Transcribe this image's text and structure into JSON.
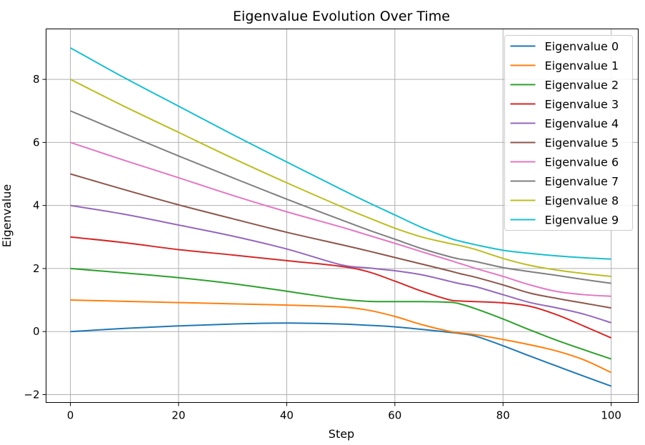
{
  "chart_data": {
    "type": "line",
    "title": "Eigenvalue Evolution Over Time",
    "xlabel": "Step",
    "ylabel": "Eigenvalue",
    "xlim": [
      -4.5,
      105
    ],
    "ylim": [
      -2.25,
      9.6
    ],
    "xticks": [
      0,
      20,
      40,
      60,
      80,
      100
    ],
    "yticks": [
      -2,
      0,
      2,
      4,
      6,
      8
    ],
    "grid": true,
    "legend_position": "top-right",
    "x": [
      0,
      10,
      20,
      30,
      40,
      50,
      55,
      60,
      65,
      70,
      72,
      75,
      80,
      85,
      90,
      95,
      100
    ],
    "series": [
      {
        "name": "Eigenvalue 0",
        "color": "#1f77b4",
        "values": [
          0.0,
          0.1,
          0.18,
          0.24,
          0.27,
          0.24,
          0.2,
          0.15,
          0.07,
          -0.02,
          -0.06,
          -0.15,
          -0.45,
          -0.78,
          -1.1,
          -1.42,
          -1.73
        ]
      },
      {
        "name": "Eigenvalue 1",
        "color": "#ff7f0e",
        "values": [
          1.0,
          0.96,
          0.92,
          0.88,
          0.84,
          0.78,
          0.68,
          0.48,
          0.22,
          0.01,
          -0.04,
          -0.1,
          -0.25,
          -0.42,
          -0.62,
          -0.9,
          -1.3
        ]
      },
      {
        "name": "Eigenvalue 2",
        "color": "#2ca02c",
        "values": [
          2.0,
          1.86,
          1.71,
          1.52,
          1.28,
          1.03,
          0.96,
          0.95,
          0.95,
          0.93,
          0.88,
          0.72,
          0.4,
          0.05,
          -0.28,
          -0.58,
          -0.87
        ]
      },
      {
        "name": "Eigenvalue 3",
        "color": "#d62728",
        "values": [
          3.0,
          2.82,
          2.6,
          2.43,
          2.25,
          2.07,
          1.9,
          1.6,
          1.28,
          1.01,
          0.97,
          0.95,
          0.91,
          0.8,
          0.53,
          0.17,
          -0.2
        ]
      },
      {
        "name": "Eigenvalue 4",
        "color": "#9467bd",
        "values": [
          4.0,
          3.72,
          3.38,
          3.03,
          2.62,
          2.12,
          2.02,
          1.93,
          1.8,
          1.6,
          1.52,
          1.42,
          1.17,
          0.92,
          0.75,
          0.55,
          0.28
        ]
      },
      {
        "name": "Eigenvalue 5",
        "color": "#8c564b",
        "values": [
          5.0,
          4.5,
          4.02,
          3.58,
          3.15,
          2.76,
          2.56,
          2.35,
          2.14,
          1.93,
          1.84,
          1.72,
          1.48,
          1.22,
          1.05,
          0.9,
          0.75
        ]
      },
      {
        "name": "Eigenvalue 6",
        "color": "#e377c2",
        "values": [
          6.0,
          5.43,
          4.88,
          4.32,
          3.8,
          3.32,
          3.06,
          2.8,
          2.53,
          2.27,
          2.16,
          2.0,
          1.75,
          1.48,
          1.27,
          1.17,
          1.12
        ]
      },
      {
        "name": "Eigenvalue 7",
        "color": "#7f7f7f",
        "values": [
          7.0,
          6.28,
          5.57,
          4.88,
          4.2,
          3.55,
          3.23,
          2.93,
          2.63,
          2.38,
          2.3,
          2.22,
          2.03,
          1.9,
          1.78,
          1.65,
          1.53
        ]
      },
      {
        "name": "Eigenvalue 8",
        "color": "#bcbd22",
        "values": [
          8.0,
          7.14,
          6.32,
          5.5,
          4.72,
          3.97,
          3.62,
          3.28,
          3.0,
          2.8,
          2.73,
          2.6,
          2.32,
          2.1,
          1.95,
          1.84,
          1.75
        ]
      },
      {
        "name": "Eigenvalue 9",
        "color": "#17becf",
        "values": [
          9.0,
          8.05,
          7.15,
          6.25,
          5.38,
          4.52,
          4.1,
          3.7,
          3.3,
          2.97,
          2.87,
          2.75,
          2.58,
          2.48,
          2.4,
          2.34,
          2.3
        ]
      }
    ]
  }
}
